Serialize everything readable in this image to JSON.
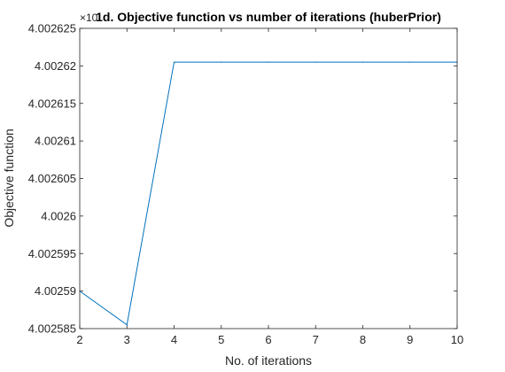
{
  "chart_data": {
    "type": "line",
    "title": "1d. Objective function vs number of iterations (huberPrior)",
    "xlabel": "No. of iterations",
    "ylabel": "Objective function",
    "xlim": [
      2,
      10
    ],
    "ylim": [
      4.002585,
      4.002625
    ],
    "xticks": [
      "2",
      "3",
      "4",
      "5",
      "6",
      "7",
      "8",
      "9",
      "10"
    ],
    "yticks": [
      "4.002585",
      "4.00259",
      "4.002595",
      "4.0026",
      "4.002605",
      "4.00261",
      "4.002615",
      "4.00262",
      "4.002625"
    ],
    "y_exponent_label": "×10",
    "grid": false,
    "series": [
      {
        "color": "#0072BD",
        "x": [
          2,
          3,
          4,
          5,
          6,
          7,
          8,
          9,
          10
        ],
        "y": [
          4.00259,
          4.0025855,
          4.0026205,
          4.0026205,
          4.0026205,
          4.0026205,
          4.0026205,
          4.0026205,
          4.0026205
        ]
      }
    ]
  }
}
